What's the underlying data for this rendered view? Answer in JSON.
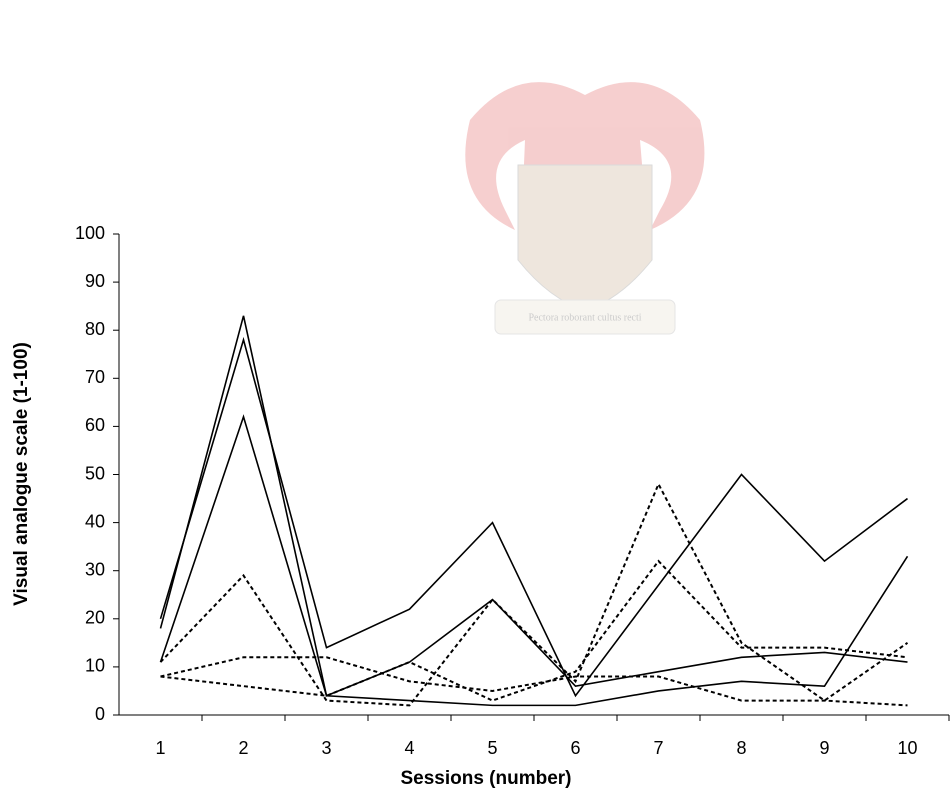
{
  "chart_data": {
    "type": "line",
    "watermark": "Pectora roborant cultus recti",
    "xlabel": "Sessions (number)",
    "ylabel": "Visual analogue scale (1-100)",
    "categories": [
      "1",
      "2",
      "3",
      "4",
      "5",
      "6",
      "7",
      "8",
      "9",
      "10"
    ],
    "series": [
      {
        "color": "#000000",
        "dash": false,
        "values": [
          18,
          83,
          4,
          11,
          24,
          6,
          9,
          12,
          13,
          11
        ]
      },
      {
        "color": "#000000",
        "dash": false,
        "values": [
          20,
          78,
          14,
          22,
          40,
          4,
          27,
          50,
          32,
          45
        ]
      },
      {
        "color": "#000000",
        "dash": false,
        "values": [
          11,
          62,
          4,
          3,
          2,
          2,
          5,
          7,
          6,
          33
        ]
      },
      {
        "color": "#000000",
        "dash": true,
        "values": [
          11,
          29,
          3,
          2,
          24,
          7,
          48,
          15,
          3,
          15
        ]
      },
      {
        "color": "#000000",
        "dash": true,
        "values": [
          8,
          12,
          12,
          7,
          5,
          8,
          8,
          3,
          3,
          2
        ]
      },
      {
        "color": "#000000",
        "dash": true,
        "values": [
          8,
          6,
          4,
          11,
          3,
          9,
          32,
          14,
          14,
          12
        ]
      }
    ],
    "ylim": [
      0,
      100
    ],
    "yticks": [
      0,
      10,
      20,
      30,
      40,
      50,
      60,
      70,
      80,
      90,
      100
    ],
    "grid": false
  }
}
